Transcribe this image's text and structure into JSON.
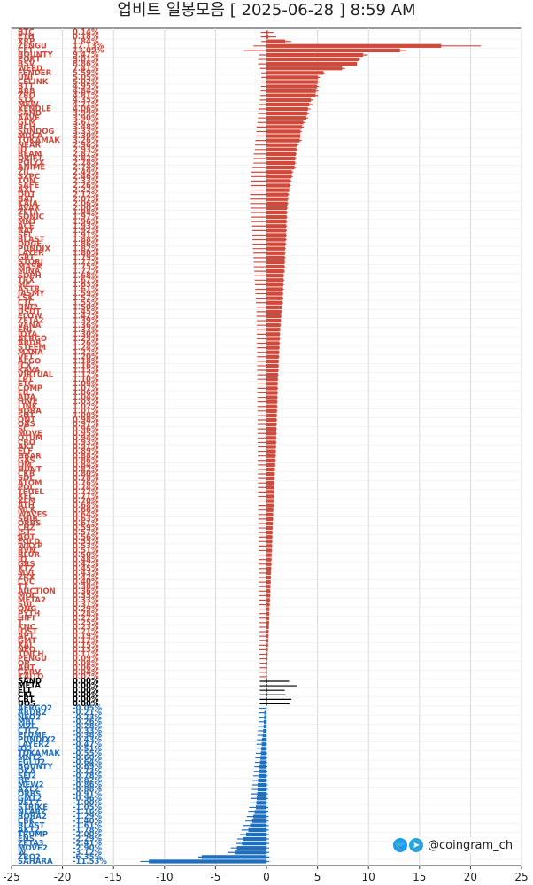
{
  "title": "업비트 일봉모음 [ 2025-06-28 ]  8:59 AM",
  "brand": {
    "handle": "@coingram_ch",
    "icons": [
      "twitter-icon",
      "telegram-icon"
    ]
  },
  "colors": {
    "up": "#d0493b",
    "flat": "#000000",
    "down": "#1f6fbf",
    "grid": "#d8d8d8"
  },
  "chart_data": {
    "type": "bar",
    "orientation": "horizontal",
    "xlim": [
      -25,
      25
    ],
    "x_ticks": [
      "-25",
      "-20",
      "-15",
      "-10",
      "-5",
      "0",
      "5",
      "10",
      "15",
      "20",
      "25"
    ],
    "grid": true,
    "series": [
      {
        "values": [
          0.14,
          0.18,
          1.84,
          17.13,
          13.09,
          9.47,
          9.01,
          8.86,
          7.41,
          5.59,
          5.05,
          5.02,
          4.95,
          4.84,
          4.81,
          4.35,
          4.21,
          4.06,
          3.99,
          3.9,
          3.61,
          3.48,
          3.33,
          3.3,
          3.26,
          2.96,
          2.93,
          2.87,
          2.82,
          2.78,
          2.74,
          2.49,
          2.46,
          2.33,
          2.26,
          2.22,
          2.12,
          2.07,
          2.06,
          2.0,
          1.98,
          1.97,
          1.96,
          1.93,
          1.92,
          1.91,
          1.88,
          1.86,
          1.82,
          1.8,
          1.79,
          1.77,
          1.75,
          1.72,
          1.68,
          1.67,
          1.63,
          1.61,
          1.59,
          1.57,
          1.55,
          1.5,
          1.45,
          1.42,
          1.39,
          1.36,
          1.33,
          1.3,
          1.29,
          1.26,
          1.24,
          1.22,
          1.2,
          1.18,
          1.16,
          1.15,
          1.12,
          1.1,
          1.09,
          1.07,
          1.06,
          1.04,
          1.03,
          1.02,
          1.01,
          1.0,
          0.98,
          0.97,
          0.96,
          0.95,
          0.94,
          0.93,
          0.91,
          0.89,
          0.88,
          0.86,
          0.84,
          0.82,
          0.8,
          0.78,
          0.76,
          0.74,
          0.72,
          0.71,
          0.7,
          0.68,
          0.66,
          0.64,
          0.63,
          0.61,
          0.59,
          0.57,
          0.56,
          0.55,
          0.53,
          0.51,
          0.5,
          0.48,
          0.47,
          0.45,
          0.43,
          0.42,
          0.4,
          0.38,
          0.36,
          0.35,
          0.33,
          0.31,
          0.29,
          0.28,
          0.27,
          0.25,
          0.23,
          0.21,
          0.19,
          0.17,
          0.15,
          0.13,
          0.11,
          0.09,
          0.08,
          0.06,
          0.04,
          0.02,
          0.0,
          0.0,
          0.0,
          0.0,
          0.0,
          0.0,
          -0.05,
          -0.21,
          -0.23,
          -0.26,
          -0.28,
          -0.33,
          -0.38,
          -0.43,
          -0.47,
          -0.51,
          -0.55,
          -0.6,
          -0.64,
          -0.69,
          -0.73,
          -0.78,
          -0.82,
          -0.86,
          -0.88,
          -0.91,
          -0.96,
          -1.0,
          -1.05,
          -1.16,
          -1.29,
          -1.4,
          -1.61,
          -1.78,
          -2.0,
          -2.29,
          -2.41,
          -2.9,
          -3.12,
          -6.35,
          -11.53
        ],
        "bar_colors": [
          "up",
          "up",
          "up",
          "up",
          "up",
          "up",
          "up",
          "up",
          "up",
          "up",
          "up",
          "up",
          "up",
          "up",
          "up",
          "up",
          "up",
          "up",
          "up",
          "up",
          "up",
          "up",
          "up",
          "up",
          "up",
          "up",
          "up",
          "up",
          "up",
          "up",
          "up",
          "up",
          "up",
          "up",
          "up",
          "up",
          "up",
          "up",
          "up",
          "up",
          "up",
          "up",
          "up",
          "up",
          "up",
          "up",
          "up",
          "up",
          "up",
          "up",
          "up",
          "up",
          "up",
          "up",
          "up",
          "up",
          "up",
          "up",
          "up",
          "up",
          "up",
          "up",
          "up",
          "up",
          "up",
          "up",
          "up",
          "up",
          "up",
          "up",
          "up",
          "up",
          "up",
          "up",
          "up",
          "up",
          "up",
          "up",
          "up",
          "up",
          "up",
          "up",
          "up",
          "up",
          "up",
          "up",
          "up",
          "up",
          "up",
          "up",
          "up",
          "up",
          "up",
          "up",
          "up",
          "up",
          "up",
          "up",
          "up",
          "up",
          "up",
          "up",
          "up",
          "up",
          "up",
          "up",
          "up",
          "up",
          "up",
          "up",
          "up",
          "up",
          "up",
          "up",
          "up",
          "up",
          "up",
          "up",
          "up",
          "up",
          "up",
          "up",
          "up",
          "up",
          "up",
          "up",
          "up",
          "up",
          "up",
          "up",
          "up",
          "up",
          "up",
          "up",
          "up",
          "up",
          "up",
          "up",
          "up",
          "up",
          "up",
          "up",
          "up",
          "up",
          "flat",
          "flat",
          "flat",
          "flat",
          "flat",
          "flat",
          "down",
          "down",
          "down",
          "down",
          "down",
          "down",
          "down",
          "down",
          "down",
          "down",
          "down",
          "down",
          "down",
          "down",
          "down",
          "down",
          "down",
          "down",
          "down",
          "down",
          "down",
          "down",
          "down",
          "down",
          "down",
          "down",
          "down",
          "down",
          "down",
          "down",
          "down",
          "down",
          "down",
          "down",
          "down"
        ],
        "whisker_low": [
          -0.55,
          -0.55,
          -0.5,
          -1.28,
          -2.18,
          -0.73,
          -0.82,
          -0.82,
          -0.64,
          -0.53,
          -0.5,
          -0.52,
          -0.54,
          -0.58,
          -0.6,
          -0.65,
          -0.74,
          -0.8,
          -0.82,
          -0.85,
          -0.9,
          -0.98,
          -1.0,
          -1.05,
          -1.1,
          -1.12,
          -1.15,
          -1.24,
          -1.26,
          -1.28,
          -1.41,
          -1.5,
          -1.52,
          -1.54,
          -1.56,
          -1.6,
          -1.6,
          -1.62,
          -1.6,
          -1.57,
          -1.55,
          -1.51,
          -1.48,
          -1.42,
          -1.4,
          -1.4,
          -1.38,
          -1.37,
          -1.35,
          -1.3,
          -1.28,
          -1.25,
          -1.24,
          -1.2,
          -1.18,
          -1.16,
          -1.12,
          -1.1,
          -1.08,
          -1.06,
          -1.04,
          -1.0,
          -0.99,
          -0.98,
          -0.96,
          -0.96,
          -0.95,
          -0.95,
          -0.94,
          -0.94,
          -0.93,
          -0.93,
          -0.93,
          -0.92,
          -0.92,
          -0.92,
          -0.9,
          -0.9,
          -0.9,
          -0.9,
          -0.9,
          -0.89,
          -0.89,
          -0.89,
          -0.89,
          -0.88,
          -0.88,
          -0.88,
          -0.88,
          -0.87,
          -0.87,
          -0.87,
          -0.86,
          -0.86,
          -0.86,
          -0.86,
          -0.85,
          -0.85,
          -0.85,
          -0.84,
          -0.84,
          -0.84,
          -0.83,
          -0.83,
          -0.83,
          -0.82,
          -0.82,
          -0.81,
          -0.81,
          -0.81,
          -0.8,
          -0.8,
          -0.8,
          -0.79,
          -0.79,
          -0.78,
          -0.78,
          -0.78,
          -0.77,
          -0.77,
          -0.77,
          -0.76,
          -0.76,
          -0.75,
          -0.75,
          -0.74,
          -0.74,
          -0.74,
          -0.73,
          -0.73,
          -0.72,
          -0.72,
          -0.71,
          -0.71,
          -0.71,
          -0.7,
          -0.7,
          -0.69,
          -0.69,
          -0.68,
          -0.68,
          -0.67,
          -0.66,
          -0.66,
          -0.66,
          -0.66,
          -0.66,
          -0.66,
          -0.66,
          -0.66,
          -0.69,
          -0.75,
          -0.77,
          -0.79,
          -0.82,
          -0.85,
          -0.89,
          -0.93,
          -0.97,
          -1.0,
          -1.04,
          -1.09,
          -1.14,
          -1.19,
          -1.25,
          -1.3,
          -1.36,
          -1.4,
          -1.45,
          -1.5,
          -1.57,
          -1.63,
          -1.7,
          -1.8,
          -1.93,
          -2.08,
          -2.29,
          -2.44,
          -2.61,
          -2.85,
          -2.99,
          -3.51,
          -3.79,
          -6.69,
          -12.38
        ],
        "whisker_high": [
          0.67,
          0.94,
          2.41,
          21.02,
          13.73,
          9.9,
          9.21,
          8.49,
          7.7,
          5.68,
          5.23,
          5.23,
          5.16,
          5.08,
          5.06,
          4.62,
          4.52,
          4.31,
          4.19,
          4.09,
          3.8,
          3.65,
          3.47,
          3.48,
          3.44,
          3.15,
          3.08,
          3.03,
          2.97,
          2.92,
          2.89,
          2.62,
          2.58,
          2.46,
          2.39,
          2.34,
          2.22,
          2.17,
          2.15,
          2.11,
          2.09,
          2.06,
          2.05,
          2.02,
          2.01,
          1.99,
          1.97,
          1.95,
          1.89,
          1.88,
          1.87,
          1.86,
          1.85,
          1.82,
          1.78,
          1.76,
          1.72,
          1.7,
          1.68,
          1.65,
          1.63,
          1.58,
          1.53,
          1.5,
          1.46,
          1.43,
          1.39,
          1.36,
          1.35,
          1.32,
          1.3,
          1.28,
          1.27,
          1.25,
          1.23,
          1.21,
          1.18,
          1.16,
          1.15,
          1.13,
          1.12,
          1.1,
          1.09,
          1.08,
          1.07,
          1.06,
          1.04,
          1.03,
          1.02,
          1.01,
          1.0,
          0.99,
          0.96,
          0.94,
          0.93,
          0.91,
          0.89,
          0.87,
          0.84,
          0.83,
          0.81,
          0.79,
          0.77,
          0.76,
          0.74,
          0.72,
          0.7,
          0.68,
          0.67,
          0.65,
          0.63,
          0.62,
          0.6,
          0.59,
          0.57,
          0.55,
          0.54,
          0.51,
          0.51,
          0.49,
          0.46,
          0.45,
          0.43,
          0.41,
          0.39,
          0.38,
          0.35,
          0.33,
          0.31,
          0.3,
          0.29,
          0.27,
          0.25,
          0.22,
          0.2,
          0.18,
          0.17,
          0.14,
          0.12,
          0.1,
          0.09,
          0.07,
          0.05,
          0.03,
          2.21,
          3.03,
          1.79,
          1.86,
          2.44,
          2.25,
          0.03,
          0.01,
          0.01,
          0.0,
          0.0,
          0.01,
          0.02,
          0.03,
          0.04,
          0.05,
          0.06,
          0.07,
          0.08,
          0.09,
          0.1,
          0.11,
          0.12,
          0.13,
          0.14,
          0.15,
          0.16,
          0.17,
          0.18,
          0.19,
          0.2,
          0.21,
          0.22,
          0.23,
          0.24,
          0.25,
          0.26,
          0.27,
          0.28,
          0.29,
          0.3
        ]
      }
    ],
    "categories": [
      "BTC",
      "ETH",
      "XRP",
      "ZENGU",
      "CET",
      "BOUNTY",
      "POKT",
      "BSV",
      "WEED",
      "FENDER",
      "UNI",
      "CELINK",
      "BTT",
      "ARB",
      "ZRO",
      "STX",
      "MEW",
      "XENDLE",
      "SAND",
      "AAVE",
      "GLM",
      "BCH",
      "SUNDOG",
      "MOCA",
      "TOKAMAK",
      "NEAR",
      "IO",
      "BEAM",
      "DRIFT",
      "POLYX",
      "ANIME",
      "ZIL",
      "SXPC",
      "TON",
      "SAFE",
      "AXL",
      "DOT",
      "BAT",
      "KAIA",
      "AVAX",
      "ZETA",
      "SONIC",
      "MNT",
      "ACE",
      "RAY",
      "SEI",
      "BLAST",
      "DOGE",
      "PUNDIX",
      "LAYER",
      "GRT",
      "STORJ",
      "MASK",
      "MINA",
      "SOPH",
      "TRX",
      "ME",
      "ASTR",
      "JASMY",
      "LSK",
      "CTC",
      "UNI2",
      "USDT",
      "FLOW",
      "ZETA2",
      "VANA",
      "ENJ",
      "IOTA",
      "AERGO",
      "ARDR",
      "STEEM",
      "MANA",
      "VET",
      "ALGO",
      "ICX",
      "KAVA",
      "VIRTUAL",
      "LPT",
      "ETC",
      "COMP",
      "FIL",
      "ADA",
      "HIVE",
      "LINK",
      "BORA",
      "SNT",
      "ONT",
      "OAS",
      "SC",
      "MOVE",
      "QTUM",
      "CRO",
      "AKT",
      "ELF",
      "HBAR",
      "GAS",
      "OM",
      "HUNT",
      "CKB",
      "SOL",
      "ATOM",
      "POL",
      "TFUEL",
      "XEC",
      "XLM",
      "ATH",
      "MLK",
      "WAVES",
      "SHIB",
      "ORBS",
      "CHZ",
      "JST",
      "AQT",
      "EGLD",
      "WAXP",
      "RVN",
      "BLUR",
      "IQ",
      "GRS",
      "XTZ",
      "MVL",
      "ZRX",
      "CVC",
      "TT",
      "AUCTION",
      "MOC",
      "META2",
      "SUI",
      "ONG",
      "PYTH",
      "HIFI",
      "T",
      "KNC",
      "IOST",
      "APT",
      "GMT",
      "XAI",
      "NEO",
      "1INCH",
      "PENGU",
      "OP",
      "AHT",
      "CARV",
      "KAITO",
      "SAND",
      "META",
      "FLT",
      "CKL",
      "CBT",
      "UOS",
      "AERGO2",
      "ARDR2",
      "NEO2",
      "MBL",
      "MVL",
      "CTC2",
      "PLUME",
      "PUNDIX2",
      "LAYER2",
      "IQ2",
      "TOKAMAK",
      "MNT2",
      "EGLD2",
      "BOUNTY",
      "DKA",
      "SEI2",
      "HP",
      "MEW2",
      "AXL2",
      "ORBS",
      "GMT2",
      "VET2",
      "STRIKE",
      "NEAR2",
      "BORA2",
      "CBK",
      "BLAST",
      "AKT2",
      "TRUMP",
      "ENS",
      "ZETA3",
      "MOVE2",
      "W",
      "ZRO2",
      "SAHARA"
    ],
    "labels": [
      "0.14%",
      "0.18%",
      "1.84%",
      "17.13%",
      "13.09%",
      "9.47%",
      "9.01%",
      "8.86%",
      "7.41%",
      "5.59%",
      "5.05%",
      "5.02%",
      "4.95%",
      "4.84%",
      "4.81%",
      "4.35%",
      "4.21%",
      "4.06%",
      "3.99%",
      "3.90%",
      "3.61%",
      "3.48%",
      "3.33%",
      "3.30%",
      "3.26%",
      "2.96%",
      "2.93%",
      "2.87%",
      "2.82%",
      "2.78%",
      "2.74%",
      "2.49%",
      "2.46%",
      "2.33%",
      "2.26%",
      "2.22%",
      "2.12%",
      "2.07%",
      "2.06%",
      "2.00%",
      "1.98%",
      "1.97%",
      "1.96%",
      "1.93%",
      "1.92%",
      "1.91%",
      "1.88%",
      "1.86%",
      "1.82%",
      "1.80%",
      "1.79%",
      "1.77%",
      "1.75%",
      "1.72%",
      "1.68%",
      "1.67%",
      "1.63%",
      "1.61%",
      "1.59%",
      "1.57%",
      "1.55%",
      "1.50%",
      "1.45%",
      "1.42%",
      "1.39%",
      "1.36%",
      "1.33%",
      "1.30%",
      "1.29%",
      "1.26%",
      "1.24%",
      "1.22%",
      "1.20%",
      "1.18%",
      "1.16%",
      "1.15%",
      "1.12%",
      "1.10%",
      "1.09%",
      "1.07%",
      "1.06%",
      "1.04%",
      "1.03%",
      "1.02%",
      "1.01%",
      "1.00%",
      "0.98%",
      "0.97%",
      "0.96%",
      "0.95%",
      "0.94%",
      "0.93%",
      "0.91%",
      "0.89%",
      "0.88%",
      "0.86%",
      "0.84%",
      "0.82%",
      "0.80%",
      "0.78%",
      "0.76%",
      "0.74%",
      "0.72%",
      "0.71%",
      "0.70%",
      "0.68%",
      "0.66%",
      "0.64%",
      "0.63%",
      "0.61%",
      "0.59%",
      "0.57%",
      "0.56%",
      "0.55%",
      "0.53%",
      "0.51%",
      "0.50%",
      "0.48%",
      "0.47%",
      "0.45%",
      "0.43%",
      "0.42%",
      "0.40%",
      "0.38%",
      "0.36%",
      "0.35%",
      "0.33%",
      "0.31%",
      "0.29%",
      "0.28%",
      "0.27%",
      "0.25%",
      "0.23%",
      "0.21%",
      "0.19%",
      "0.17%",
      "0.15%",
      "0.13%",
      "0.11%",
      "0.09%",
      "0.08%",
      "0.06%",
      "0.04%",
      "0.02%",
      "0.00%",
      "0.00%",
      "0.00%",
      "0.00%",
      "0.00%",
      "0.00%",
      "-0.05%",
      "-0.21%",
      "-0.23%",
      "-0.26%",
      "-0.28%",
      "-0.33%",
      "-0.38%",
      "-0.43%",
      "-0.47%",
      "-0.51%",
      "-0.55%",
      "-0.60%",
      "-0.64%",
      "-0.69%",
      "-0.73%",
      "-0.78%",
      "-0.82%",
      "-0.86%",
      "-0.88%",
      "-0.91%",
      "-0.96%",
      "-1.00%",
      "-1.05%",
      "-1.16%",
      "-1.29%",
      "-1.40%",
      "-1.61%",
      "-1.78%",
      "-2.00%",
      "-2.29%",
      "-2.41%",
      "-2.90%",
      "-3.12%",
      "-6.35%",
      "-11.53%"
    ]
  }
}
